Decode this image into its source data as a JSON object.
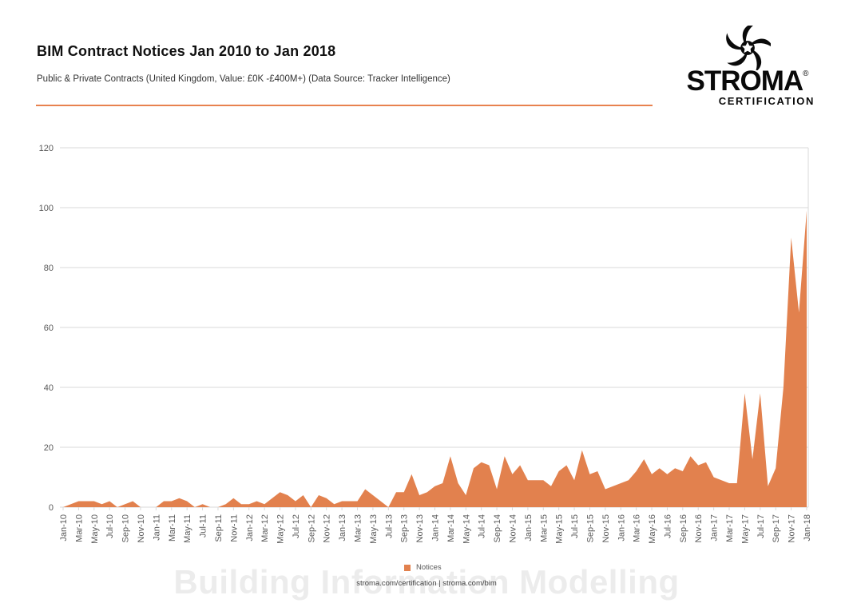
{
  "header": {
    "title": "BIM Contract Notices Jan 2010 to Jan 2018",
    "subtitle": "Public & Private Contracts (United Kingdom, Value: £0K -£400M+) (Data Source: Tracker Intelligence)"
  },
  "logo": {
    "name": "STROMA",
    "registered": "®",
    "subtitle": "CERTIFICATION"
  },
  "colors": {
    "area_orange": "#E2814E",
    "divider_orange": "#E8824F",
    "gridline": "#D9D9D9",
    "axis_text": "#595959"
  },
  "chart_data": {
    "type": "area",
    "title": "BIM Contract Notices Jan 2010 to Jan 2018",
    "categories": [
      "Jan-10",
      "Feb-10",
      "Mar-10",
      "Apr-10",
      "May-10",
      "Jun-10",
      "Jul-10",
      "Aug-10",
      "Sep-10",
      "Oct-10",
      "Nov-10",
      "Dec-10",
      "Jan-11",
      "Feb-11",
      "Mar-11",
      "Apr-11",
      "May-11",
      "Jun-11",
      "Jul-11",
      "Aug-11",
      "Sep-11",
      "Oct-11",
      "Nov-11",
      "Dec-11",
      "Jan-12",
      "Feb-12",
      "Mar-12",
      "Apr-12",
      "May-12",
      "Jun-12",
      "Jul-12",
      "Aug-12",
      "Sep-12",
      "Oct-12",
      "Nov-12",
      "Dec-12",
      "Jan-13",
      "Feb-13",
      "Mar-13",
      "Apr-13",
      "May-13",
      "Jun-13",
      "Jul-13",
      "Aug-13",
      "Sep-13",
      "Oct-13",
      "Nov-13",
      "Dec-13",
      "Jan-14",
      "Feb-14",
      "Mar-14",
      "Apr-14",
      "May-14",
      "Jun-14",
      "Jul-14",
      "Aug-14",
      "Sep-14",
      "Oct-14",
      "Nov-14",
      "Dec-14",
      "Jan-15",
      "Feb-15",
      "Mar-15",
      "Apr-15",
      "May-15",
      "Jun-15",
      "Jul-15",
      "Aug-15",
      "Sep-15",
      "Oct-15",
      "Nov-15",
      "Dec-15",
      "Jan-16",
      "Feb-16",
      "Mar-16",
      "Apr-16",
      "May-16",
      "Jun-16",
      "Jul-16",
      "Aug-16",
      "Sep-16",
      "Oct-16",
      "Nov-16",
      "Dec-16",
      "Jan-17",
      "Feb-17",
      "Mar-17",
      "Apr-17",
      "May-17",
      "Jun-17",
      "Jul-17",
      "Aug-17",
      "Sep-17",
      "Oct-17",
      "Nov-17",
      "Dec-17",
      "Jan-18"
    ],
    "series": [
      {
        "name": "Notices",
        "color": "#E2814E",
        "values": [
          0,
          1,
          2,
          2,
          2,
          1,
          2,
          0,
          1,
          2,
          0,
          0,
          0,
          2,
          2,
          3,
          2,
          0,
          1,
          0,
          0,
          1,
          3,
          1,
          1,
          2,
          1,
          3,
          5,
          4,
          2,
          4,
          0,
          4,
          3,
          1,
          2,
          2,
          2,
          6,
          4,
          2,
          0,
          5,
          5,
          11,
          4,
          5,
          7,
          8,
          17,
          8,
          4,
          13,
          15,
          14,
          6,
          17,
          11,
          14,
          9,
          9,
          9,
          7,
          12,
          14,
          9,
          19,
          11,
          12,
          6,
          7,
          8,
          9,
          12,
          16,
          11,
          13,
          11,
          13,
          12,
          17,
          14,
          15,
          10,
          9,
          8,
          8,
          38,
          16,
          38,
          7,
          13,
          40,
          90,
          65,
          99
        ]
      }
    ],
    "yticks": [
      0,
      20,
      40,
      60,
      80,
      100,
      120
    ],
    "ylim": [
      0,
      120
    ],
    "x_label_every": 2,
    "grid": true,
    "legend_position": "bottom"
  },
  "legend": {
    "label": "Notices",
    "color": "#E2814E"
  },
  "footer": {
    "links": "stroma.com/certification | stroma.com/bim"
  },
  "watermark": {
    "text": "Building Information Modelling"
  }
}
